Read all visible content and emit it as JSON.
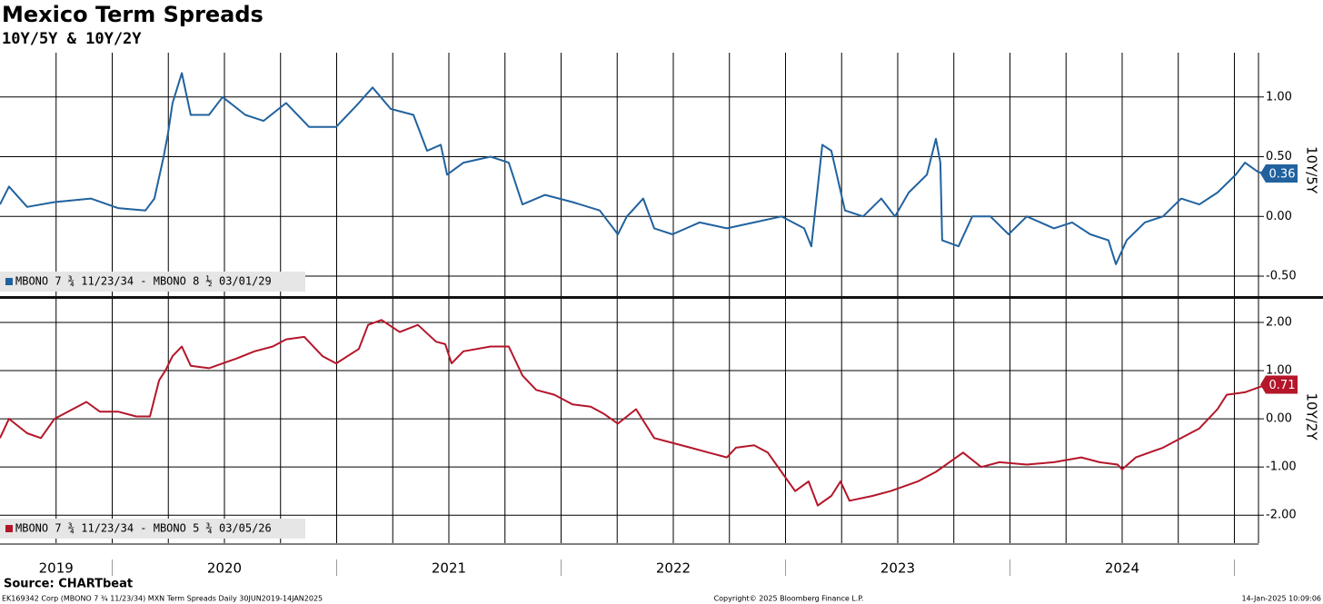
{
  "title": "Mexico Term Spreads",
  "subtitle": "10Y/5Y & 10Y/2Y",
  "source": "Source: CHARTbeat",
  "footer": {
    "left": "EK169342 Corp (MBONO 7 ¾ 11/23/34) MXN Term Spreads  Daily 30JUN2019-14JAN2025",
    "center": "Copyright© 2025 Bloomberg Finance L.P.",
    "right": "14-Jan-2025 10:09:06"
  },
  "chart_data": [
    {
      "type": "line",
      "axis_label": "10Y/5Y",
      "xlim": [
        2019.5,
        2025.156
      ],
      "ylim": [
        -0.667,
        1.371
      ],
      "yticks": [
        {
          "value": 1,
          "label": "1.00"
        },
        {
          "value": 0.5,
          "label": "0.50"
        },
        {
          "value": 0,
          "label": "0.00"
        },
        {
          "value": -0.5,
          "label": "-0.50"
        }
      ],
      "xgrid": [
        2019.75,
        2020,
        2020.25,
        2020.5,
        2020.75,
        2021,
        2021.25,
        2021.5,
        2021.75,
        2022,
        2022.25,
        2022.5,
        2022.75,
        2023,
        2023.25,
        2023.5,
        2023.75,
        2024,
        2024.25,
        2024.5,
        2024.75,
        2025
      ],
      "series": [
        {
          "name": "MBONO 7 ¾ 11/23/34 - MBONO 8 ½ 03/01/29",
          "color": "#21629e",
          "x": [
            2019.5,
            2019.54,
            2019.621,
            2019.743,
            2019.905,
            2020.026,
            2020.148,
            2020.188,
            2020.229,
            2020.249,
            2020.269,
            2020.31,
            2020.35,
            2020.431,
            2020.492,
            2020.593,
            2020.674,
            2020.775,
            2020.877,
            2020.998,
            2021.099,
            2021.16,
            2021.241,
            2021.342,
            2021.403,
            2021.464,
            2021.492,
            2021.565,
            2021.686,
            2021.767,
            2021.828,
            2021.929,
            2022.051,
            2022.172,
            2022.253,
            2022.293,
            2022.366,
            2022.415,
            2022.496,
            2022.617,
            2022.739,
            2022.86,
            2022.982,
            2023.083,
            2023.115,
            2023.164,
            2023.204,
            2023.265,
            2023.346,
            2023.427,
            2023.488,
            2023.549,
            2023.63,
            2023.67,
            2023.69,
            2023.698,
            2023.771,
            2023.832,
            2023.913,
            2023.994,
            2024.075,
            2024.196,
            2024.277,
            2024.358,
            2024.439,
            2024.472,
            2024.52,
            2024.601,
            2024.682,
            2024.763,
            2024.844,
            2024.925,
            2025.006,
            2025.047,
            2025.107,
            2025.148
          ],
          "values": [
            0.1,
            0.25,
            0.08,
            0.12,
            0.15,
            0.07,
            0.05,
            0.15,
            0.5,
            0.7,
            0.95,
            1.2,
            0.85,
            0.85,
            1.0,
            0.85,
            0.8,
            0.95,
            0.75,
            0.75,
            0.95,
            1.08,
            0.9,
            0.85,
            0.55,
            0.6,
            0.35,
            0.45,
            0.5,
            0.45,
            0.1,
            0.18,
            0.12,
            0.05,
            -0.15,
            0.0,
            0.15,
            -0.1,
            -0.15,
            -0.05,
            -0.1,
            -0.05,
            0.0,
            -0.1,
            -0.25,
            0.6,
            0.55,
            0.05,
            0.0,
            0.15,
            0.0,
            0.2,
            0.35,
            0.65,
            0.45,
            -0.2,
            -0.25,
            0.0,
            0.0,
            -0.15,
            0.0,
            -0.1,
            -0.05,
            -0.15,
            -0.2,
            -0.4,
            -0.2,
            -0.05,
            0.0,
            0.15,
            0.1,
            0.2,
            0.35,
            0.45,
            0.37,
            0.36
          ],
          "current": {
            "value": 0.36,
            "label": "0.36"
          }
        }
      ]
    },
    {
      "type": "line",
      "axis_label": "10Y/2Y",
      "xlim": [
        2019.5,
        2025.156
      ],
      "ylim": [
        -2.58,
        2.49
      ],
      "yticks": [
        {
          "value": 2,
          "label": "2.00"
        },
        {
          "value": 1,
          "label": "1.00"
        },
        {
          "value": 0,
          "label": "0.00"
        },
        {
          "value": -1,
          "label": "-1.00"
        },
        {
          "value": -2,
          "label": "-2.00"
        }
      ],
      "xgrid": [
        2019.75,
        2020,
        2020.25,
        2020.5,
        2020.75,
        2021,
        2021.25,
        2021.5,
        2021.75,
        2022,
        2022.25,
        2022.5,
        2022.75,
        2023,
        2023.25,
        2023.5,
        2023.75,
        2024,
        2024.25,
        2024.5,
        2024.75,
        2025
      ],
      "xticks": [
        {
          "value": 2019.75,
          "label": "2019"
        },
        {
          "value": 2020.5,
          "label": "2020"
        },
        {
          "value": 2021.5,
          "label": "2021"
        },
        {
          "value": 2022.5,
          "label": "2022"
        },
        {
          "value": 2023.5,
          "label": "2023"
        },
        {
          "value": 2024.5,
          "label": "2024"
        }
      ],
      "xseparators": [
        2020,
        2021,
        2022,
        2023,
        2024,
        2025
      ],
      "series": [
        {
          "name": "MBONO 7 ¾ 11/23/34 - MBONO 5 ¾ 03/05/26",
          "color": "#b4162a",
          "x": [
            2019.5,
            2019.54,
            2019.621,
            2019.682,
            2019.743,
            2019.824,
            2019.885,
            2019.945,
            2020.026,
            2020.107,
            2020.168,
            2020.209,
            2020.237,
            2020.269,
            2020.31,
            2020.35,
            2020.431,
            2020.553,
            2020.634,
            2020.715,
            2020.775,
            2020.856,
            2020.937,
            2020.998,
            2021.099,
            2021.14,
            2021.2,
            2021.281,
            2021.362,
            2021.443,
            2021.484,
            2021.512,
            2021.565,
            2021.686,
            2021.767,
            2021.828,
            2021.889,
            2021.97,
            2022.051,
            2022.132,
            2022.192,
            2022.253,
            2022.334,
            2022.415,
            2022.496,
            2022.577,
            2022.658,
            2022.739,
            2022.779,
            2022.86,
            2022.921,
            2022.982,
            2023.043,
            2023.103,
            2023.144,
            2023.204,
            2023.245,
            2023.285,
            2023.387,
            2023.468,
            2023.589,
            2023.67,
            2023.791,
            2023.872,
            2023.953,
            2024.075,
            2024.196,
            2024.318,
            2024.399,
            2024.48,
            2024.5,
            2024.561,
            2024.682,
            2024.763,
            2024.844,
            2024.925,
            2024.966,
            2025.047,
            2025.107,
            2025.148
          ],
          "values": [
            -0.4,
            0.0,
            -0.3,
            -0.4,
            0.0,
            0.2,
            0.35,
            0.15,
            0.15,
            0.05,
            0.05,
            0.8,
            1.0,
            1.3,
            1.5,
            1.1,
            1.05,
            1.25,
            1.4,
            1.5,
            1.65,
            1.7,
            1.3,
            1.15,
            1.45,
            1.95,
            2.05,
            1.8,
            1.95,
            1.6,
            1.55,
            1.15,
            1.4,
            1.5,
            1.5,
            0.9,
            0.6,
            0.5,
            0.3,
            0.25,
            0.1,
            -0.1,
            0.2,
            -0.4,
            -0.5,
            -0.6,
            -0.7,
            -0.8,
            -0.6,
            -0.55,
            -0.7,
            -1.1,
            -1.5,
            -1.3,
            -1.8,
            -1.6,
            -1.3,
            -1.7,
            -1.6,
            -1.5,
            -1.3,
            -1.1,
            -0.7,
            -1.0,
            -0.9,
            -0.95,
            -0.9,
            -0.8,
            -0.9,
            -0.95,
            -1.05,
            -0.8,
            -0.6,
            -0.4,
            -0.2,
            0.2,
            0.5,
            0.55,
            0.65,
            0.71
          ],
          "current": {
            "value": 0.71,
            "label": "0.71"
          }
        }
      ]
    }
  ]
}
